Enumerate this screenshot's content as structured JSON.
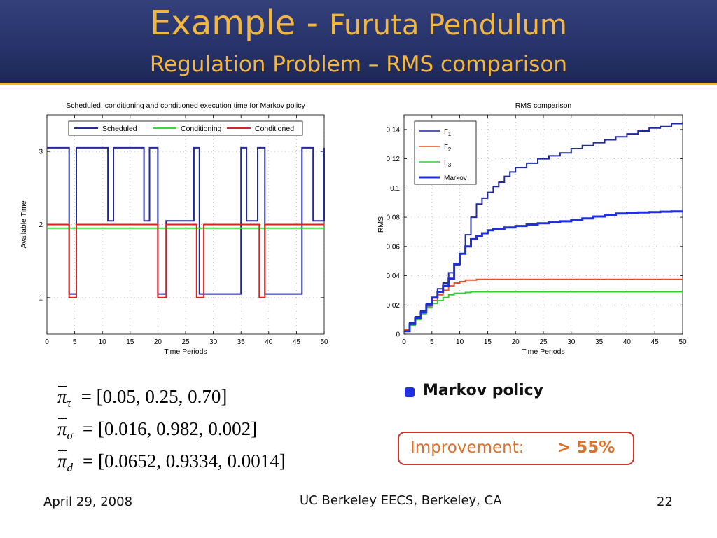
{
  "slide": {
    "title_main": "Example - ",
    "title_rest": "Furuta Pendulum",
    "subtitle": "Regulation Problem – RMS comparison"
  },
  "equations": [
    {
      "symbol": "π",
      "subscript": "τ",
      "value": "= [0.05, 0.25, 0.70]"
    },
    {
      "symbol": "π",
      "subscript": "σ",
      "value": "= [0.016, 0.982, 0.002]"
    },
    {
      "symbol": "π",
      "subscript": "d",
      "value": "= [0.0652, 0.9334, 0.0014]"
    }
  ],
  "bullet": {
    "text": "Markov policy"
  },
  "improvement": {
    "label": "Improvement:",
    "value": "> 55%"
  },
  "footer": {
    "date": "April 29, 2008",
    "center": "UC Berkeley EECS, Berkeley, CA",
    "page": "22"
  },
  "colors": {
    "header": "#27336a",
    "title": "#f3b73f",
    "accent": "#e8b54a",
    "box_border": "#d4342a",
    "box_text": "#d9722c",
    "bullet": "#1f2fe0"
  },
  "chart_data": [
    {
      "type": "line",
      "title": "Scheduled, conditioning and conditioned execution time for Markov policy",
      "xlabel": "Time Periods",
      "ylabel": "Available Time",
      "xlim": [
        0,
        50
      ],
      "ylim": [
        0.5,
        3.5
      ],
      "xticks": [
        0,
        5,
        10,
        15,
        20,
        25,
        30,
        35,
        40,
        45,
        50
      ],
      "yticks": [
        1,
        2,
        3
      ],
      "grid": true,
      "legend_position": "top",
      "series": [
        {
          "name": "Scheduled",
          "color": "#1f2a9e",
          "step": true,
          "x": [
            0,
            4,
            4.5,
            5.3,
            11,
            12,
            17.5,
            18.5,
            20,
            21.5,
            26.5,
            27.5,
            35,
            36,
            38,
            39.3,
            46,
            48,
            50
          ],
          "y": [
            3.05,
            1.05,
            1.05,
            3.05,
            2.05,
            3.05,
            2.05,
            3.05,
            1.05,
            2.05,
            3.05,
            1.05,
            3.05,
            2.05,
            3.05,
            1.05,
            3.05,
            2.05,
            3.05
          ]
        },
        {
          "name": "Conditioning",
          "color": "#33dd33",
          "x": [
            0,
            50
          ],
          "y": [
            1.95,
            1.95
          ]
        },
        {
          "name": "Conditioned",
          "color": "#dd2222",
          "step": true,
          "x": [
            0,
            4,
            5.3,
            20,
            21.5,
            27,
            28.3,
            38.3,
            39.3,
            50
          ],
          "y": [
            2,
            1,
            2,
            1,
            2,
            1,
            2,
            1,
            2,
            2
          ]
        }
      ]
    },
    {
      "type": "line",
      "title": "RMS comparison",
      "xlabel": "Time Periods",
      "ylabel": "RMS",
      "xlim": [
        0,
        50
      ],
      "ylim": [
        0,
        0.15
      ],
      "xticks": [
        0,
        5,
        10,
        15,
        20,
        25,
        30,
        35,
        40,
        45,
        50
      ],
      "yticks": [
        0,
        0.02,
        0.04,
        0.06,
        0.08,
        0.1,
        0.12,
        0.14
      ],
      "grid": true,
      "legend_position": "top-left",
      "series": [
        {
          "name": "Γ1",
          "legend_sub": "1",
          "color": "#1f2a9e",
          "x": [
            0,
            1,
            2,
            3,
            4,
            5,
            6,
            7,
            8,
            9,
            10,
            11,
            12,
            13,
            14,
            15,
            16,
            17,
            18,
            19,
            20,
            22,
            24,
            26,
            28,
            30,
            32,
            34,
            36,
            38,
            40,
            42,
            44,
            46,
            48,
            50
          ],
          "y": [
            0.003,
            0.008,
            0.012,
            0.016,
            0.021,
            0.025,
            0.031,
            0.035,
            0.042,
            0.047,
            0.055,
            0.068,
            0.08,
            0.089,
            0.093,
            0.097,
            0.101,
            0.104,
            0.108,
            0.111,
            0.114,
            0.117,
            0.12,
            0.122,
            0.124,
            0.127,
            0.129,
            0.131,
            0.133,
            0.135,
            0.137,
            0.139,
            0.141,
            0.142,
            0.144,
            0.145
          ]
        },
        {
          "name": "Γ2",
          "legend_sub": "2",
          "color": "#e8522a",
          "x": [
            0,
            1,
            2,
            3,
            4,
            5,
            6,
            7,
            8,
            9,
            10,
            11,
            12,
            13,
            14,
            15,
            16,
            18,
            20,
            50
          ],
          "y": [
            0.003,
            0.007,
            0.011,
            0.015,
            0.019,
            0.023,
            0.027,
            0.03,
            0.033,
            0.035,
            0.036,
            0.037,
            0.037,
            0.0375,
            0.0375,
            0.0375,
            0.0375,
            0.0375,
            0.0375,
            0.0375
          ]
        },
        {
          "name": "Γ3",
          "legend_sub": "3",
          "color": "#33cc33",
          "x": [
            0,
            1,
            2,
            3,
            4,
            5,
            6,
            7,
            8,
            9,
            10,
            11,
            12,
            13,
            14,
            16,
            18,
            20,
            50
          ],
          "y": [
            0.002,
            0.006,
            0.01,
            0.014,
            0.018,
            0.021,
            0.023,
            0.025,
            0.027,
            0.028,
            0.028,
            0.0285,
            0.029,
            0.029,
            0.029,
            0.029,
            0.029,
            0.029,
            0.029
          ]
        },
        {
          "name": "Markov",
          "color": "#1f2fe0",
          "thick": true,
          "x": [
            0,
            1,
            2,
            3,
            4,
            5,
            6,
            7,
            8,
            9,
            10,
            11,
            12,
            13,
            14,
            15,
            16,
            18,
            20,
            22,
            24,
            26,
            28,
            30,
            32,
            34,
            36,
            38,
            40,
            42,
            44,
            46,
            48,
            50
          ],
          "y": [
            0.002,
            0.007,
            0.011,
            0.015,
            0.02,
            0.025,
            0.029,
            0.033,
            0.038,
            0.048,
            0.055,
            0.06,
            0.065,
            0.067,
            0.069,
            0.071,
            0.072,
            0.073,
            0.074,
            0.075,
            0.0758,
            0.0765,
            0.0772,
            0.078,
            0.0792,
            0.0805,
            0.0815,
            0.0825,
            0.083,
            0.0833,
            0.0835,
            0.0838,
            0.084,
            0.084
          ]
        }
      ]
    }
  ]
}
